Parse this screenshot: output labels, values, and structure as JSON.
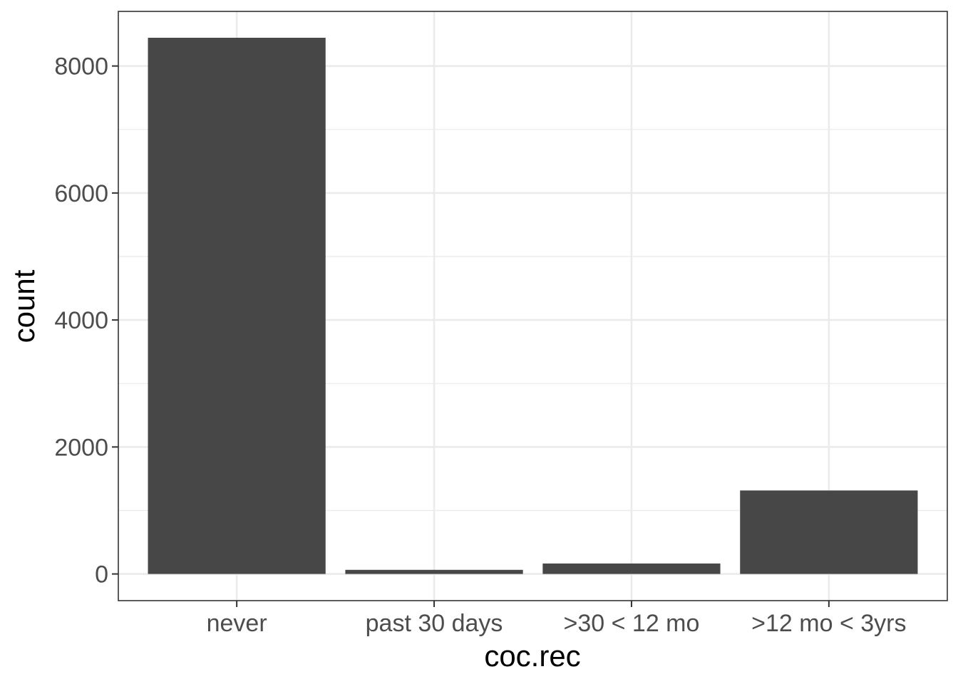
{
  "chart_data": {
    "type": "bar",
    "categories": [
      "never",
      "past 30 days",
      ">30 < 12 mo",
      ">12 mo < 3yrs"
    ],
    "values": [
      8445,
      65,
      165,
      1315
    ],
    "xlabel": "coc.rec",
    "ylabel": "count",
    "ylim": [
      -420,
      8860
    ],
    "yticks": [
      0,
      2000,
      4000,
      6000,
      8000
    ],
    "yticks_labels": [
      "0",
      "2000",
      "4000",
      "6000",
      "8000"
    ],
    "grid": true,
    "bar_color": "#474747",
    "grid_color": "#ebebeb",
    "panel_border_color": "#333333"
  }
}
